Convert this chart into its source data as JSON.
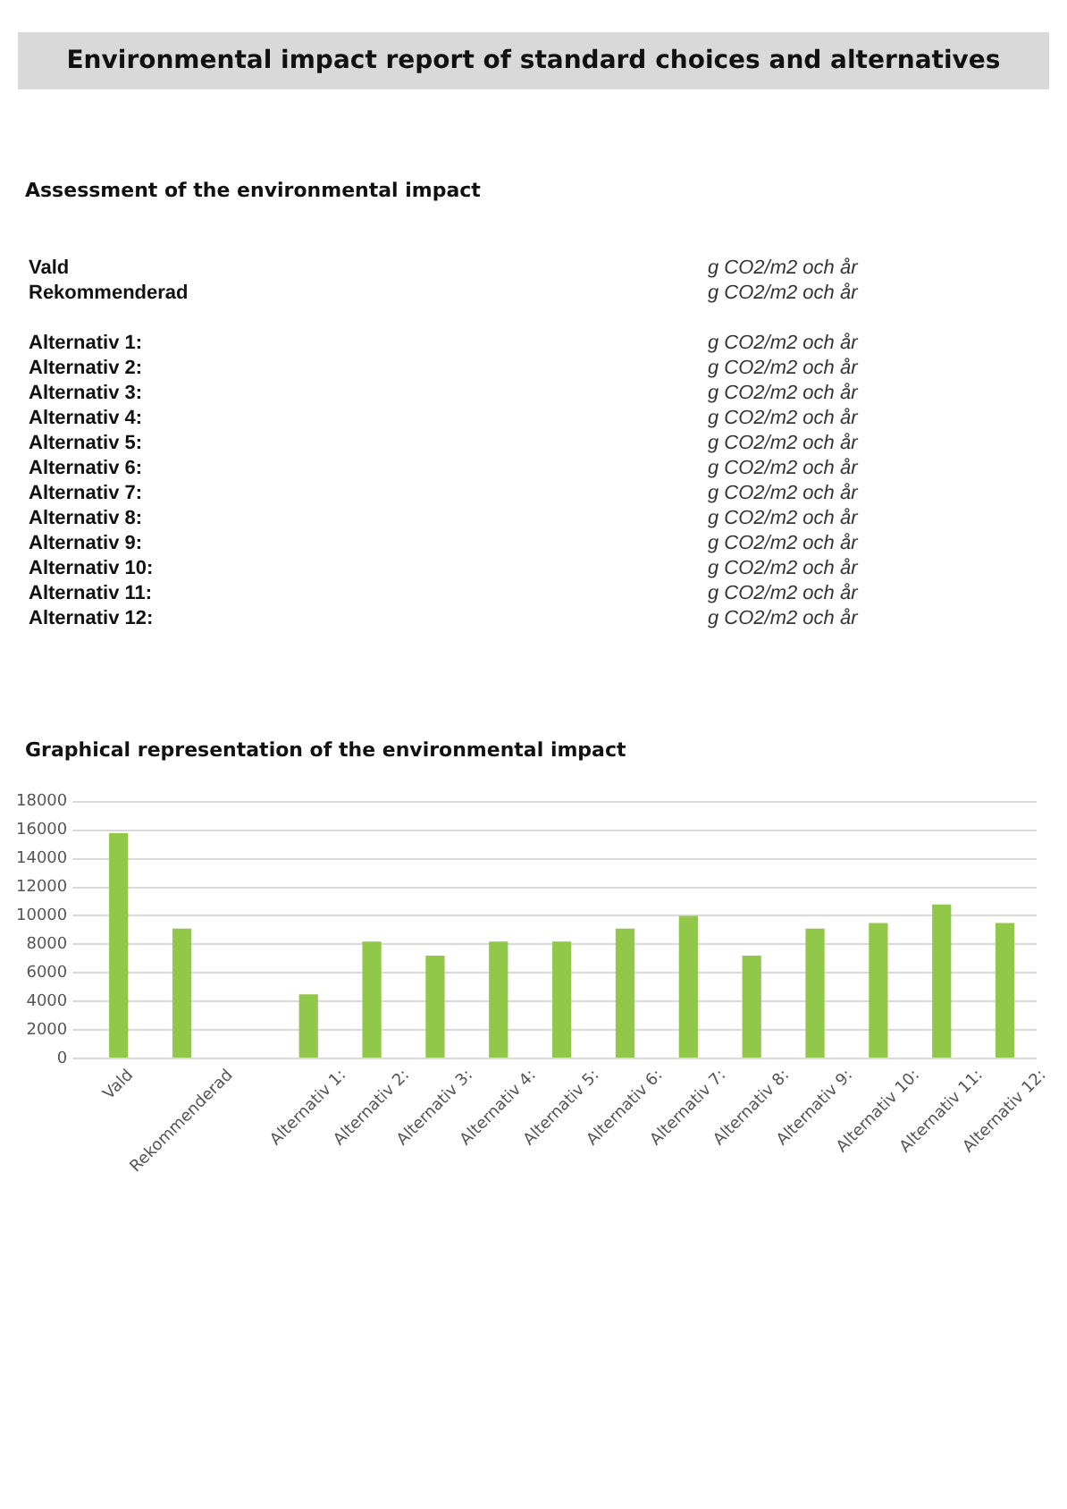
{
  "chart_data": {
    "type": "bar",
    "title": "Environmental impact report of standard choices and alternatives",
    "subtitle": "Graphical representation of the environmental impact",
    "annotations": [
      "Assessment of the environmental impact",
      "Vald",
      "Rekommenderad",
      "Alternativ 1:",
      "Alternativ 2:",
      "Alternativ 3:",
      "Alternativ 4:",
      "Alternativ 5:",
      "Alternativ 6:",
      "Alternativ 7:",
      "Alternativ 8:",
      "Alternativ 9:",
      "Alternativ 10:",
      "Alternativ 11:",
      "Alternativ 12:",
      "g CO2/m2 och år",
      "g CO2/m2 och år",
      "g CO2/m2 och år",
      "g CO2/m2 och år",
      "g CO2/m2 och år",
      "g CO2/m2 och år",
      "g CO2/m2 och år",
      "g CO2/m2 och år",
      "g CO2/m2 och år",
      "g CO2/m2 och år",
      "g CO2/m2 och år",
      "g CO2/m2 och år",
      "g CO2/m2 och år",
      "g CO2/m2 och år"
    ],
    "categories": [
      "Vald",
      "Rekommenderad",
      null,
      "Alternativ 1",
      "Alternativ 2",
      "Alternativ 3",
      "Alternativ 4",
      "Alternativ 5",
      "Alternativ 6",
      "Alternativ 7",
      "Alternativ 8",
      "Alternativ 9",
      "Alternativ 10",
      "Alternativ 11",
      "Alternativ 12"
    ],
    "values": [
      15800,
      9100,
      null,
      4500,
      8200,
      7200,
      8200,
      8200,
      9100,
      10000,
      7200,
      9100,
      9500,
      10800,
      9500
    ],
    "color": "#92c84a",
    "ylim": [
      0,
      18000
    ],
    "yticks": [
      0,
      2000,
      4000,
      6000,
      8000,
      10000,
      12000,
      14000,
      16000,
      18000
    ],
    "grid": "y",
    "legend": false
  }
}
